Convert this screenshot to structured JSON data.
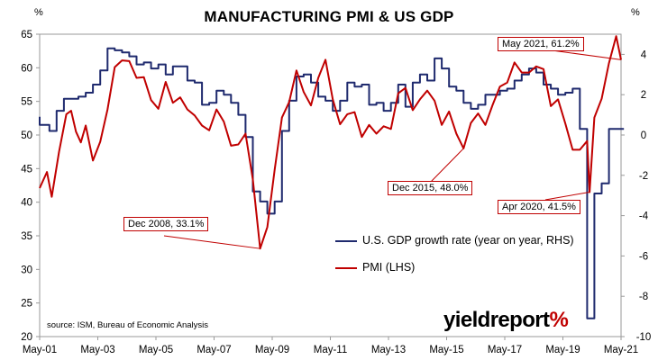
{
  "title": "MANUFACTURING PMI & US GDP",
  "left_unit": "%",
  "right_unit": "%",
  "source_text": "source: ISM, Bureau of Economic Analysis",
  "logo": {
    "main": "yieldreport",
    "accent": "%"
  },
  "legend": [
    {
      "label": "U.S. GDP growth rate (year on year, RHS)",
      "color": "#1f2a6e"
    },
    {
      "label": "PMI (LHS)",
      "color": "#c00000"
    }
  ],
  "annotations": [
    {
      "label": "Dec 2008, 33.1%",
      "series": "PMI (LHS)"
    },
    {
      "label": "Dec 2015, 48.0%",
      "series": "PMI (LHS)"
    },
    {
      "label": "May 2021, 61.2%",
      "series": "PMI (LHS)"
    },
    {
      "label": "Apr 2020, 41.5%",
      "series": "PMI (LHS)"
    }
  ],
  "chart_data": {
    "type": "line",
    "title": "MANUFACTURING PMI & US GDP",
    "x_ticks": [
      "May-01",
      "May-03",
      "May-05",
      "May-07",
      "May-09",
      "May-11",
      "May-13",
      "May-15",
      "May-17",
      "May-19",
      "May-21"
    ],
    "y_left": {
      "ticks": [
        20,
        25,
        30,
        35,
        40,
        45,
        50,
        55,
        60,
        65
      ],
      "range": [
        20,
        65
      ]
    },
    "y_right": {
      "ticks": [
        -10,
        -8,
        -6,
        -4,
        -2,
        0,
        2,
        4
      ],
      "range": [
        -10,
        5
      ]
    },
    "grid": false,
    "legend_position": "bottom-right",
    "series": [
      {
        "name": "U.S. GDP growth rate (year on year, RHS)",
        "axis": "right",
        "color": "#1f2a6e",
        "points": [
          [
            "2001-05",
            0.9
          ],
          [
            "2001-09",
            0.5
          ],
          [
            "2001-12",
            0.2
          ],
          [
            "2002-03",
            1.2
          ],
          [
            "2002-06",
            1.8
          ],
          [
            "2002-09",
            1.8
          ],
          [
            "2002-12",
            1.9
          ],
          [
            "2003-03",
            2.1
          ],
          [
            "2003-06",
            2.5
          ],
          [
            "2003-09",
            3.2
          ],
          [
            "2003-12",
            4.3
          ],
          [
            "2004-03",
            4.2
          ],
          [
            "2004-06",
            4.1
          ],
          [
            "2004-09",
            3.9
          ],
          [
            "2004-12",
            3.5
          ],
          [
            "2005-03",
            3.6
          ],
          [
            "2005-06",
            3.3
          ],
          [
            "2005-09",
            3.5
          ],
          [
            "2005-12",
            3.0
          ],
          [
            "2006-03",
            3.4
          ],
          [
            "2006-06",
            3.4
          ],
          [
            "2006-09",
            2.7
          ],
          [
            "2006-12",
            2.6
          ],
          [
            "2007-03",
            1.5
          ],
          [
            "2007-06",
            1.6
          ],
          [
            "2007-09",
            2.2
          ],
          [
            "2007-12",
            2.0
          ],
          [
            "2008-03",
            1.6
          ],
          [
            "2008-06",
            1.0
          ],
          [
            "2008-09",
            -0.1
          ],
          [
            "2008-12",
            -2.8
          ],
          [
            "2009-03",
            -3.3
          ],
          [
            "2009-06",
            -3.9
          ],
          [
            "2009-09",
            -3.3
          ],
          [
            "2009-12",
            0.2
          ],
          [
            "2010-03",
            1.7
          ],
          [
            "2010-06",
            2.9
          ],
          [
            "2010-09",
            3.0
          ],
          [
            "2010-12",
            2.6
          ],
          [
            "2011-03",
            1.9
          ],
          [
            "2011-06",
            1.7
          ],
          [
            "2011-09",
            1.2
          ],
          [
            "2011-12",
            1.7
          ],
          [
            "2012-03",
            2.6
          ],
          [
            "2012-06",
            2.4
          ],
          [
            "2012-09",
            2.5
          ],
          [
            "2012-12",
            1.5
          ],
          [
            "2013-03",
            1.6
          ],
          [
            "2013-06",
            1.2
          ],
          [
            "2013-09",
            1.6
          ],
          [
            "2013-12",
            2.5
          ],
          [
            "2014-03",
            1.4
          ],
          [
            "2014-06",
            2.6
          ],
          [
            "2014-09",
            3.0
          ],
          [
            "2014-12",
            2.7
          ],
          [
            "2015-03",
            3.8
          ],
          [
            "2015-06",
            3.3
          ],
          [
            "2015-09",
            2.4
          ],
          [
            "2015-12",
            2.2
          ],
          [
            "2016-03",
            1.6
          ],
          [
            "2016-06",
            1.3
          ],
          [
            "2016-09",
            1.5
          ],
          [
            "2016-12",
            2.0
          ],
          [
            "2017-03",
            2.0
          ],
          [
            "2017-06",
            2.2
          ],
          [
            "2017-09",
            2.3
          ],
          [
            "2017-12",
            2.7
          ],
          [
            "2018-03",
            3.0
          ],
          [
            "2018-06",
            3.3
          ],
          [
            "2018-09",
            3.1
          ],
          [
            "2018-12",
            2.5
          ],
          [
            "2019-03",
            2.3
          ],
          [
            "2019-06",
            2.0
          ],
          [
            "2019-09",
            2.1
          ],
          [
            "2019-12",
            2.3
          ],
          [
            "2020-03",
            0.3
          ],
          [
            "2020-06",
            -9.1
          ],
          [
            "2020-09",
            -2.9
          ],
          [
            "2020-12",
            -2.4
          ],
          [
            "2021-03",
            0.3
          ],
          [
            "2021-05",
            0.3
          ]
        ]
      },
      {
        "name": "PMI (LHS)",
        "axis": "left",
        "color": "#c00000",
        "points": [
          [
            "2001-05",
            42.1
          ],
          [
            "2001-08",
            44.5
          ],
          [
            "2001-10",
            40.8
          ],
          [
            "2002-01",
            47.5
          ],
          [
            "2002-04",
            53.1
          ],
          [
            "2002-06",
            53.6
          ],
          [
            "2002-08",
            50.5
          ],
          [
            "2002-10",
            48.9
          ],
          [
            "2002-12",
            51.4
          ],
          [
            "2003-03",
            46.2
          ],
          [
            "2003-06",
            49.0
          ],
          [
            "2003-09",
            53.8
          ],
          [
            "2003-12",
            60.1
          ],
          [
            "2004-03",
            61.1
          ],
          [
            "2004-06",
            61.0
          ],
          [
            "2004-09",
            58.5
          ],
          [
            "2004-12",
            58.6
          ],
          [
            "2005-03",
            55.2
          ],
          [
            "2005-06",
            53.9
          ],
          [
            "2005-09",
            57.9
          ],
          [
            "2005-12",
            54.8
          ],
          [
            "2006-03",
            55.6
          ],
          [
            "2006-06",
            53.8
          ],
          [
            "2006-09",
            52.9
          ],
          [
            "2006-12",
            51.4
          ],
          [
            "2007-03",
            50.7
          ],
          [
            "2007-06",
            53.8
          ],
          [
            "2007-09",
            52.0
          ],
          [
            "2007-12",
            48.4
          ],
          [
            "2008-03",
            48.6
          ],
          [
            "2008-06",
            50.2
          ],
          [
            "2008-09",
            43.4
          ],
          [
            "2008-12",
            33.1
          ],
          [
            "2009-03",
            36.3
          ],
          [
            "2009-06",
            44.8
          ],
          [
            "2009-09",
            52.6
          ],
          [
            "2009-12",
            54.9
          ],
          [
            "2010-03",
            59.6
          ],
          [
            "2010-06",
            56.4
          ],
          [
            "2010-09",
            54.4
          ],
          [
            "2010-12",
            58.5
          ],
          [
            "2011-03",
            61.2
          ],
          [
            "2011-06",
            55.3
          ],
          [
            "2011-09",
            51.6
          ],
          [
            "2011-12",
            53.1
          ],
          [
            "2012-03",
            53.4
          ],
          [
            "2012-06",
            49.7
          ],
          [
            "2012-09",
            51.5
          ],
          [
            "2012-12",
            50.2
          ],
          [
            "2013-03",
            51.3
          ],
          [
            "2013-06",
            50.9
          ],
          [
            "2013-09",
            56.2
          ],
          [
            "2013-12",
            57.0
          ],
          [
            "2014-03",
            53.7
          ],
          [
            "2014-06",
            55.3
          ],
          [
            "2014-09",
            56.6
          ],
          [
            "2014-12",
            55.1
          ],
          [
            "2015-03",
            51.5
          ],
          [
            "2015-06",
            53.5
          ],
          [
            "2015-09",
            50.2
          ],
          [
            "2015-12",
            48.0
          ],
          [
            "2016-03",
            51.8
          ],
          [
            "2016-06",
            53.2
          ],
          [
            "2016-09",
            51.5
          ],
          [
            "2016-12",
            54.5
          ],
          [
            "2017-03",
            57.2
          ],
          [
            "2017-06",
            57.8
          ],
          [
            "2017-09",
            60.8
          ],
          [
            "2017-12",
            59.3
          ],
          [
            "2018-03",
            59.3
          ],
          [
            "2018-06",
            60.2
          ],
          [
            "2018-09",
            59.8
          ],
          [
            "2018-12",
            54.3
          ],
          [
            "2019-03",
            55.3
          ],
          [
            "2019-06",
            51.7
          ],
          [
            "2019-09",
            47.8
          ],
          [
            "2019-12",
            47.8
          ],
          [
            "2020-03",
            49.1
          ],
          [
            "2020-04",
            41.5
          ],
          [
            "2020-06",
            52.6
          ],
          [
            "2020-09",
            55.4
          ],
          [
            "2020-12",
            60.7
          ],
          [
            "2021-03",
            64.7
          ],
          [
            "2021-05",
            61.2
          ]
        ]
      }
    ]
  }
}
